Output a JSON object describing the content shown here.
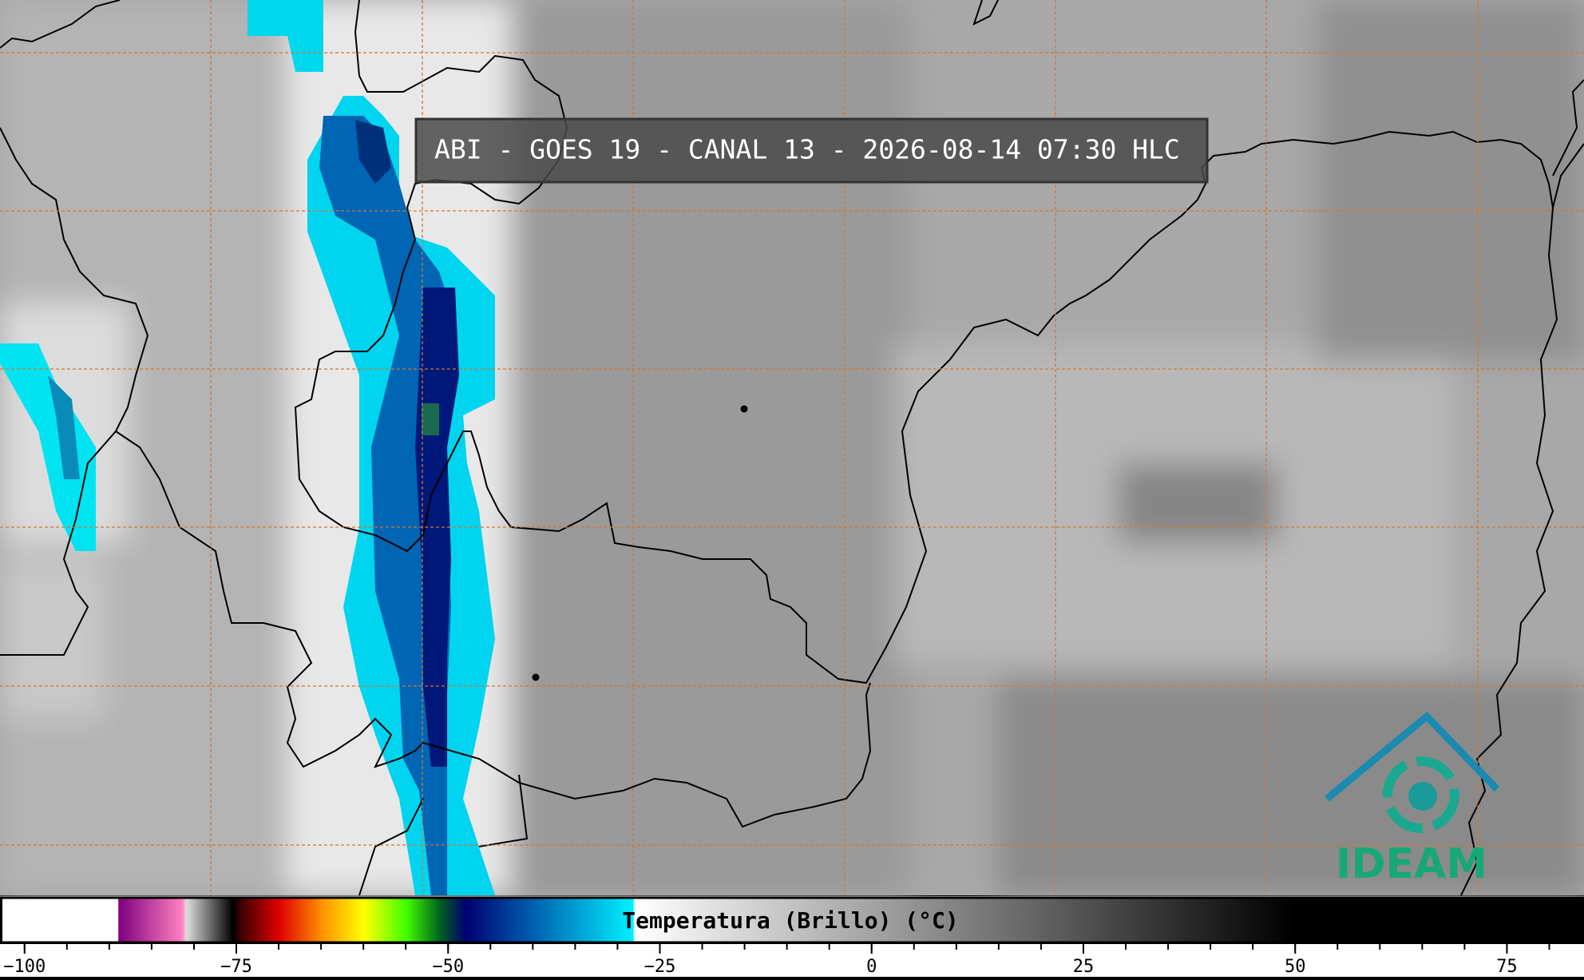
{
  "title": "ABI - GOES 19 - CANAL 13 - 2026-08-14 07:30 HLC",
  "logo": "IDEAM",
  "colorbar": {
    "label": "Temperatura (Brillo) (°C)",
    "lim": [
      -102.9,
      84.1
    ],
    "ticks": [
      {
        "value": -100,
        "label": "−100"
      },
      {
        "value": -75,
        "label": "−75"
      },
      {
        "value": -50,
        "label": "−50"
      },
      {
        "value": -25,
        "label": "−25"
      },
      0,
      25,
      50,
      75
    ],
    "stops": [
      {
        "value": -102.9,
        "color": "#ffffff"
      },
      {
        "value": -89.1,
        "color": "#ffffff"
      },
      {
        "value": -89,
        "color": "#800080"
      },
      {
        "value": -81.5,
        "color": "#ff80c0"
      },
      {
        "value": -81,
        "color": "#dddddd"
      },
      {
        "value": -75.5,
        "color": "#000000"
      },
      {
        "value": -74.5,
        "color": "#400000"
      },
      {
        "value": -70,
        "color": "#e00000"
      },
      {
        "value": -65,
        "color": "#ff9000"
      },
      {
        "value": -60,
        "color": "#ffff00"
      },
      {
        "value": -55,
        "color": "#40ff00"
      },
      {
        "value": -51,
        "color": "#006020"
      },
      {
        "value": -48,
        "color": "#000070"
      },
      {
        "value": -40,
        "color": "#0060b0"
      },
      {
        "value": -28.2,
        "color": "#00f0ff"
      },
      {
        "value": -28,
        "color": "#ffffff"
      },
      {
        "value": 50,
        "color": "#000000"
      },
      {
        "value": 84.1,
        "color": "#000000"
      }
    ]
  }
}
